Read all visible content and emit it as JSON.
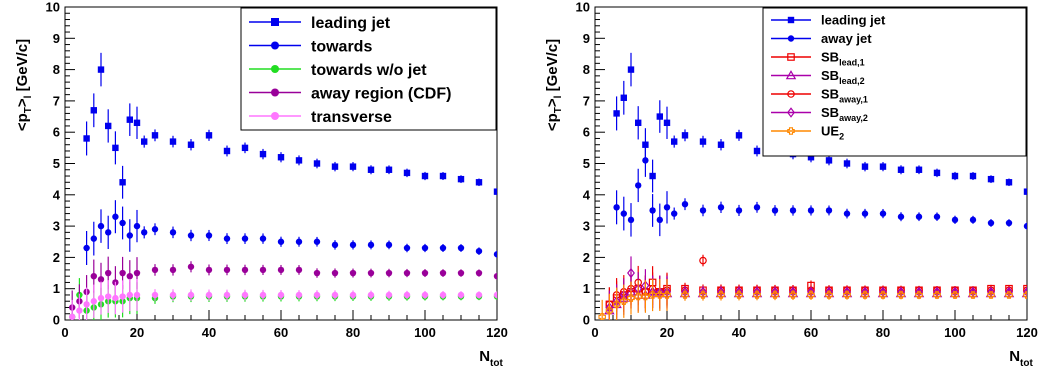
{
  "chart_data": [
    {
      "type": "scatter",
      "panel": "left",
      "xlabel": "N",
      "xlabel_sub": "tot",
      "ylabel_main": "<p",
      "ylabel_sub": "T",
      "ylabel_after": ">",
      "ylabel_sub2": "l",
      "ylabel_unit": " [GeV/c]",
      "xlim": [
        0,
        120
      ],
      "ylim": [
        0,
        10
      ],
      "xticks": [
        "0",
        "20",
        "40",
        "60",
        "80",
        "100",
        "120"
      ],
      "yticks": [
        "0",
        "1",
        "2",
        "3",
        "4",
        "5",
        "6",
        "7",
        "8",
        "9",
        "10"
      ],
      "legend_position": "top-right",
      "series": [
        {
          "name": "leading jet",
          "color": "#0000ee",
          "marker": "square",
          "x": [
            6,
            8,
            10,
            12,
            14,
            16,
            18,
            20,
            22,
            25,
            30,
            35,
            40,
            45,
            50,
            55,
            60,
            65,
            70,
            75,
            80,
            85,
            90,
            95,
            100,
            105,
            110,
            115,
            120
          ],
          "y": [
            5.8,
            6.7,
            8.0,
            6.2,
            5.5,
            4.4,
            6.4,
            6.3,
            5.7,
            5.9,
            5.7,
            5.6,
            5.9,
            5.4,
            5.5,
            5.3,
            5.2,
            5.1,
            5.0,
            4.9,
            4.9,
            4.8,
            4.8,
            4.7,
            4.6,
            4.6,
            4.5,
            4.4,
            4.1
          ]
        },
        {
          "name": "towards",
          "color": "#0000ee",
          "marker": "circle",
          "x": [
            6,
            8,
            10,
            12,
            14,
            16,
            18,
            20,
            22,
            25,
            30,
            35,
            40,
            45,
            50,
            55,
            60,
            65,
            70,
            75,
            80,
            85,
            90,
            95,
            100,
            105,
            110,
            115,
            120
          ],
          "y": [
            2.3,
            2.6,
            3.0,
            2.8,
            3.3,
            3.1,
            2.7,
            3.0,
            2.8,
            2.9,
            2.8,
            2.7,
            2.7,
            2.6,
            2.6,
            2.6,
            2.5,
            2.5,
            2.5,
            2.4,
            2.4,
            2.4,
            2.4,
            2.3,
            2.3,
            2.3,
            2.3,
            2.2,
            2.1
          ]
        },
        {
          "name": "towards w/o jet",
          "color": "#22dd22",
          "marker": "circle",
          "x": [
            2,
            4,
            6,
            8,
            10,
            12,
            14,
            16,
            18,
            20,
            25,
            30,
            35,
            40,
            45,
            50,
            55,
            60,
            65,
            70,
            75,
            80,
            85,
            90,
            95,
            100,
            105,
            110,
            115,
            120
          ],
          "y": [
            0.1,
            0.8,
            0.3,
            0.4,
            0.5,
            0.6,
            0.6,
            0.6,
            0.7,
            0.7,
            0.7,
            0.75,
            0.75,
            0.75,
            0.75,
            0.75,
            0.75,
            0.75,
            0.75,
            0.75,
            0.75,
            0.75,
            0.75,
            0.75,
            0.75,
            0.75,
            0.75,
            0.75,
            0.75,
            0.75
          ]
        },
        {
          "name": "away region (CDF)",
          "color": "#990099",
          "marker": "circle",
          "x": [
            2,
            4,
            6,
            8,
            10,
            12,
            14,
            16,
            18,
            20,
            25,
            30,
            35,
            40,
            45,
            50,
            55,
            60,
            65,
            70,
            75,
            80,
            85,
            90,
            95,
            100,
            105,
            110,
            115,
            120
          ],
          "y": [
            0.4,
            0.6,
            0.9,
            1.4,
            1.3,
            1.5,
            1.2,
            1.5,
            1.4,
            1.5,
            1.6,
            1.6,
            1.7,
            1.6,
            1.6,
            1.6,
            1.6,
            1.6,
            1.6,
            1.5,
            1.5,
            1.5,
            1.5,
            1.5,
            1.5,
            1.5,
            1.5,
            1.5,
            1.5,
            1.4
          ]
        },
        {
          "name": "transverse",
          "color": "#ff77ff",
          "marker": "circle",
          "x": [
            2,
            4,
            6,
            8,
            10,
            12,
            14,
            16,
            18,
            20,
            25,
            30,
            35,
            40,
            45,
            50,
            55,
            60,
            65,
            70,
            75,
            80,
            85,
            90,
            95,
            100,
            105,
            110,
            115,
            120
          ],
          "y": [
            0.1,
            0.3,
            0.5,
            0.6,
            0.7,
            0.75,
            0.7,
            0.75,
            0.8,
            0.8,
            0.8,
            0.8,
            0.8,
            0.8,
            0.8,
            0.8,
            0.8,
            0.8,
            0.8,
            0.8,
            0.8,
            0.8,
            0.8,
            0.8,
            0.8,
            0.8,
            0.8,
            0.8,
            0.8,
            0.8
          ]
        }
      ]
    },
    {
      "type": "scatter",
      "panel": "right",
      "xlabel": "N",
      "xlabel_sub": "tot",
      "ylabel_main": "<p",
      "ylabel_sub": "T",
      "ylabel_after": ">",
      "ylabel_sub2": "l",
      "ylabel_unit": " [GeV/c]",
      "xlim": [
        0,
        120
      ],
      "ylim": [
        0,
        10
      ],
      "xticks": [
        "0",
        "20",
        "40",
        "60",
        "80",
        "100",
        "120"
      ],
      "yticks": [
        "0",
        "1",
        "2",
        "3",
        "4",
        "5",
        "6",
        "7",
        "8",
        "9",
        "10"
      ],
      "legend_position": "top-right",
      "series": [
        {
          "name": "leading jet",
          "sub": "",
          "color": "#0000ee",
          "marker": "square",
          "x": [
            6,
            8,
            10,
            12,
            14,
            16,
            18,
            20,
            22,
            25,
            30,
            35,
            40,
            45,
            50,
            55,
            60,
            65,
            70,
            75,
            80,
            85,
            90,
            95,
            100,
            105,
            110,
            115,
            120
          ],
          "y": [
            6.6,
            7.1,
            8.0,
            6.3,
            5.6,
            4.6,
            6.5,
            6.3,
            5.7,
            5.9,
            5.7,
            5.6,
            5.9,
            5.4,
            5.5,
            5.3,
            5.2,
            5.1,
            5.0,
            4.9,
            4.9,
            4.8,
            4.8,
            4.7,
            4.6,
            4.6,
            4.5,
            4.4,
            4.1
          ]
        },
        {
          "name": "away jet",
          "sub": "",
          "color": "#0000ee",
          "marker": "circle",
          "x": [
            6,
            8,
            10,
            12,
            14,
            16,
            18,
            20,
            22,
            25,
            30,
            35,
            40,
            45,
            50,
            55,
            60,
            65,
            70,
            75,
            80,
            85,
            90,
            95,
            100,
            105,
            110,
            115,
            120
          ],
          "y": [
            3.6,
            3.4,
            3.2,
            4.3,
            5.1,
            3.5,
            3.2,
            3.6,
            3.4,
            3.7,
            3.5,
            3.6,
            3.5,
            3.6,
            3.5,
            3.5,
            3.5,
            3.5,
            3.4,
            3.4,
            3.4,
            3.3,
            3.3,
            3.3,
            3.2,
            3.2,
            3.1,
            3.1,
            3.0
          ]
        },
        {
          "name": "SB",
          "sub": "lead,1",
          "color": "#ee0000",
          "marker": "open-square",
          "x": [
            4,
            6,
            8,
            10,
            12,
            14,
            16,
            18,
            20,
            25,
            30,
            35,
            40,
            45,
            50,
            55,
            60,
            65,
            70,
            75,
            80,
            85,
            90,
            95,
            100,
            105,
            110,
            115,
            120
          ],
          "y": [
            0.5,
            0.7,
            0.8,
            0.9,
            1.0,
            0.9,
            1.2,
            0.9,
            1.0,
            1.0,
            0.95,
            0.95,
            0.95,
            0.95,
            0.95,
            0.95,
            1.1,
            0.95,
            0.95,
            0.95,
            0.95,
            0.95,
            0.95,
            0.95,
            0.95,
            0.95,
            1.0,
            1.0,
            1.0
          ]
        },
        {
          "name": "SB",
          "sub": "lead,2",
          "color": "#aa00aa",
          "marker": "open-triangle",
          "x": [
            4,
            6,
            8,
            10,
            12,
            14,
            16,
            18,
            20,
            25,
            30,
            35,
            40,
            45,
            50,
            55,
            60,
            65,
            70,
            75,
            80,
            85,
            90,
            95,
            100,
            105,
            110,
            115,
            120
          ],
          "y": [
            0.3,
            0.5,
            0.7,
            0.9,
            0.8,
            0.8,
            0.9,
            0.85,
            0.85,
            0.85,
            0.85,
            0.85,
            0.85,
            0.85,
            0.85,
            0.85,
            0.85,
            0.85,
            0.85,
            0.85,
            0.85,
            0.85,
            0.85,
            0.85,
            0.85,
            0.85,
            0.85,
            0.85,
            0.85
          ]
        },
        {
          "name": "SB",
          "sub": "away,1",
          "color": "#ee0000",
          "marker": "open-circle",
          "x": [
            4,
            6,
            8,
            10,
            12,
            14,
            16,
            18,
            20,
            25,
            30,
            35,
            40,
            45,
            50,
            55,
            60,
            65,
            70,
            75,
            80,
            85,
            90,
            95,
            100,
            105,
            110,
            115,
            120
          ],
          "y": [
            0.5,
            0.8,
            0.9,
            1.0,
            1.2,
            0.9,
            1.0,
            0.9,
            0.95,
            0.95,
            1.9,
            0.95,
            0.95,
            0.95,
            0.95,
            0.95,
            0.95,
            0.95,
            0.95,
            0.95,
            0.95,
            0.95,
            0.95,
            0.95,
            0.95,
            0.95,
            0.95,
            0.95,
            0.95
          ]
        },
        {
          "name": "SB",
          "sub": "away,2",
          "color": "#aa00aa",
          "marker": "open-diamond",
          "x": [
            4,
            6,
            8,
            10,
            12,
            14,
            16,
            18,
            20,
            25,
            30,
            35,
            40,
            45,
            50,
            55,
            60,
            65,
            70,
            75,
            80,
            85,
            90,
            95,
            100,
            105,
            110,
            115,
            120
          ],
          "y": [
            0.4,
            0.6,
            0.8,
            1.5,
            1.0,
            1.1,
            0.9,
            0.9,
            0.9,
            0.9,
            0.9,
            0.9,
            0.9,
            0.9,
            0.9,
            0.9,
            0.9,
            0.9,
            0.9,
            0.9,
            0.9,
            0.9,
            0.9,
            0.9,
            0.9,
            0.9,
            0.9,
            0.9,
            0.9
          ]
        },
        {
          "name": "UE",
          "sub": "2",
          "color": "#ff8800",
          "marker": "open-cross",
          "x": [
            2,
            4,
            6,
            8,
            10,
            12,
            14,
            16,
            18,
            20,
            25,
            30,
            35,
            40,
            45,
            50,
            55,
            60,
            65,
            70,
            75,
            80,
            85,
            90,
            95,
            100,
            105,
            110,
            115,
            120
          ],
          "y": [
            0.1,
            0.3,
            0.5,
            0.6,
            0.7,
            0.75,
            0.75,
            0.8,
            0.8,
            0.8,
            0.8,
            0.8,
            0.8,
            0.8,
            0.8,
            0.8,
            0.8,
            0.8,
            0.8,
            0.8,
            0.8,
            0.8,
            0.8,
            0.8,
            0.8,
            0.8,
            0.8,
            0.8,
            0.8,
            0.8
          ]
        }
      ]
    }
  ]
}
